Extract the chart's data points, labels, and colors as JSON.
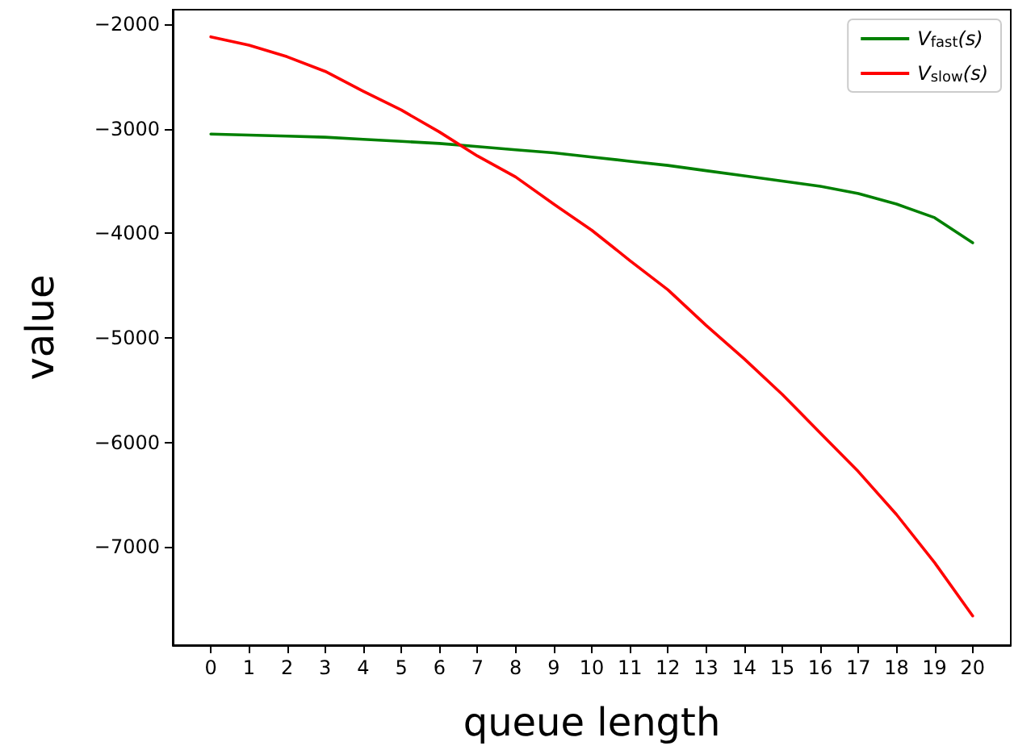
{
  "chart_data": {
    "type": "line",
    "xlabel": "queue length",
    "ylabel": "value",
    "x": [
      0,
      1,
      2,
      3,
      4,
      5,
      6,
      7,
      8,
      9,
      10,
      11,
      12,
      13,
      14,
      15,
      16,
      17,
      18,
      19,
      20
    ],
    "series": [
      {
        "name": "V$_{fast}$(s)",
        "color": "#008000",
        "values": [
          -3050,
          -3060,
          -3070,
          -3080,
          -3100,
          -3120,
          -3140,
          -3170,
          -3200,
          -3230,
          -3270,
          -3310,
          -3350,
          -3400,
          -3450,
          -3500,
          -3550,
          -3620,
          -3720,
          -3850,
          -4090
        ]
      },
      {
        "name": "V$_{slow}$(s)",
        "color": "#ff0000",
        "values": [
          -2120,
          -2200,
          -2310,
          -2450,
          -2640,
          -2820,
          -3030,
          -3260,
          -3460,
          -3720,
          -3970,
          -4260,
          -4540,
          -4880,
          -5200,
          -5540,
          -5910,
          -6280,
          -6690,
          -7150,
          -7660
        ]
      }
    ],
    "xlim": [
      -1,
      21
    ],
    "xticks": [
      0,
      1,
      2,
      3,
      4,
      5,
      6,
      7,
      8,
      9,
      10,
      11,
      12,
      13,
      14,
      15,
      16,
      17,
      18,
      19,
      20
    ],
    "ylim": [
      -7940,
      -1860
    ],
    "yticks": [
      -7000,
      -6000,
      -5000,
      -4000,
      -3000,
      -2000
    ],
    "grid": false,
    "legend": "top right",
    "marker": "none",
    "line_style": "solid"
  }
}
